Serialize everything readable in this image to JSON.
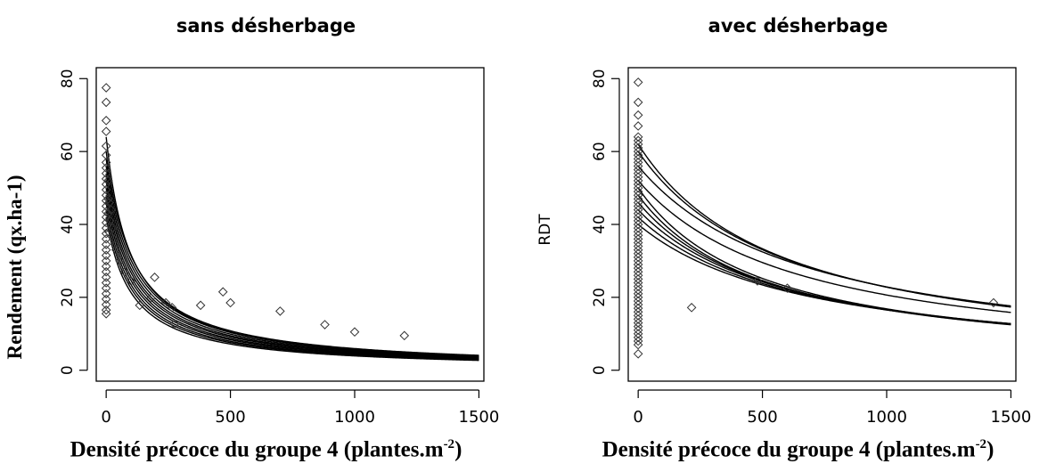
{
  "chart_data": [
    {
      "type": "scatter",
      "title": "sans désherbage",
      "xlabel_main": "Densité précoce du groupe 4 (plantes.m",
      "xlabel_sup": "-2",
      "xlabel_end": ")",
      "ylabel": "Rendement (qx.ha-1)",
      "xlim": [
        -40,
        1520
      ],
      "ylim": [
        -3,
        83
      ],
      "xticks": [
        "0",
        "500",
        "1000",
        "1500"
      ],
      "yticks": [
        "0",
        "20",
        "40",
        "60",
        "80"
      ],
      "grid": false,
      "points": [
        [
          0,
          77.5
        ],
        [
          0,
          73.5
        ],
        [
          0,
          68.5
        ],
        [
          0,
          65.5
        ],
        [
          0,
          61.5
        ],
        [
          0,
          59
        ],
        [
          0,
          57
        ],
        [
          0,
          55.5
        ],
        [
          0,
          54
        ],
        [
          0,
          52.5
        ],
        [
          0,
          51
        ],
        [
          0,
          49.5
        ],
        [
          0,
          48
        ],
        [
          0,
          46.5
        ],
        [
          0,
          45
        ],
        [
          0,
          43.5
        ],
        [
          0,
          42
        ],
        [
          0,
          40.5
        ],
        [
          0,
          39
        ],
        [
          0,
          37.5
        ],
        [
          0,
          36
        ],
        [
          0,
          34.5
        ],
        [
          0,
          33
        ],
        [
          0,
          31.5
        ],
        [
          0,
          30
        ],
        [
          0,
          28.5
        ],
        [
          0,
          27
        ],
        [
          0,
          25.5
        ],
        [
          0,
          24
        ],
        [
          0,
          22.5
        ],
        [
          0,
          21
        ],
        [
          0,
          19.5
        ],
        [
          0,
          18
        ],
        [
          0,
          16.5
        ],
        [
          0,
          15.5
        ],
        [
          8,
          52
        ],
        [
          8,
          47
        ],
        [
          8,
          43
        ],
        [
          10,
          38
        ],
        [
          12,
          46
        ],
        [
          15,
          41
        ],
        [
          20,
          44
        ],
        [
          25,
          39
        ],
        [
          30,
          36
        ],
        [
          40,
          33
        ],
        [
          55,
          30
        ],
        [
          75,
          27
        ],
        [
          100,
          24.5
        ],
        [
          135,
          17.8
        ],
        [
          180,
          19.8
        ],
        [
          195,
          25.5
        ],
        [
          240,
          18.5
        ],
        [
          265,
          17.2
        ],
        [
          275,
          12.7
        ],
        [
          380,
          17.8
        ],
        [
          470,
          21.5
        ],
        [
          500,
          18.5
        ],
        [
          700,
          16.2
        ],
        [
          880,
          12.5
        ],
        [
          1000,
          10.5
        ],
        [
          1200,
          9.5
        ]
      ],
      "curves": [
        {
          "y0": 64,
          "k": 0.0102
        },
        {
          "y0": 60,
          "k": 0.0091
        },
        {
          "y0": 58,
          "k": 0.0092
        },
        {
          "y0": 56,
          "k": 0.0093
        },
        {
          "y0": 54,
          "k": 0.0094
        },
        {
          "y0": 52,
          "k": 0.0094
        },
        {
          "y0": 50,
          "k": 0.0095
        },
        {
          "y0": 48,
          "k": 0.0095
        },
        {
          "y0": 46,
          "k": 0.0096
        },
        {
          "y0": 44,
          "k": 0.0096
        },
        {
          "y0": 42,
          "k": 0.0097
        }
      ]
    },
    {
      "type": "scatter",
      "title": "avec désherbage",
      "xlabel_main": "Densité précoce du groupe 4 (plantes.m",
      "xlabel_sup": "-2",
      "xlabel_end": ")",
      "ylabel": "RDT",
      "xlim": [
        -40,
        1520
      ],
      "ylim": [
        -3,
        83
      ],
      "xticks": [
        "0",
        "500",
        "1000",
        "1500"
      ],
      "yticks": [
        "0",
        "20",
        "40",
        "60",
        "80"
      ],
      "grid": false,
      "points": [
        [
          0,
          79
        ],
        [
          0,
          73.5
        ],
        [
          0,
          70
        ],
        [
          0,
          67
        ],
        [
          0,
          64
        ],
        [
          0,
          63
        ],
        [
          0,
          62
        ],
        [
          0,
          61
        ],
        [
          0,
          60
        ],
        [
          0,
          59
        ],
        [
          0,
          58
        ],
        [
          0,
          57
        ],
        [
          0,
          56
        ],
        [
          0,
          55
        ],
        [
          0,
          54
        ],
        [
          0,
          53
        ],
        [
          0,
          52
        ],
        [
          0,
          51
        ],
        [
          0,
          50
        ],
        [
          0,
          49
        ],
        [
          0,
          48
        ],
        [
          0,
          47
        ],
        [
          0,
          46
        ],
        [
          0,
          45
        ],
        [
          0,
          44
        ],
        [
          0,
          43
        ],
        [
          0,
          42
        ],
        [
          0,
          41
        ],
        [
          0,
          40
        ],
        [
          0,
          39
        ],
        [
          0,
          38
        ],
        [
          0,
          37
        ],
        [
          0,
          36
        ],
        [
          0,
          35
        ],
        [
          0,
          34
        ],
        [
          0,
          33
        ],
        [
          0,
          32
        ],
        [
          0,
          31
        ],
        [
          0,
          30
        ],
        [
          0,
          29
        ],
        [
          0,
          28
        ],
        [
          0,
          27
        ],
        [
          0,
          26
        ],
        [
          0,
          25
        ],
        [
          0,
          24
        ],
        [
          0,
          23
        ],
        [
          0,
          22
        ],
        [
          0,
          21
        ],
        [
          0,
          20
        ],
        [
          0,
          19
        ],
        [
          0,
          18
        ],
        [
          0,
          17
        ],
        [
          0,
          16
        ],
        [
          0,
          15
        ],
        [
          0,
          14
        ],
        [
          0,
          13
        ],
        [
          0,
          12
        ],
        [
          0,
          11
        ],
        [
          0,
          10
        ],
        [
          0,
          9
        ],
        [
          0,
          8
        ],
        [
          0,
          7
        ],
        [
          0,
          4.5
        ],
        [
          215,
          17.2
        ],
        [
          480,
          24.5
        ],
        [
          600,
          22.5
        ],
        [
          1430,
          18.5
        ]
      ],
      "curves": [
        {
          "y0": 62,
          "k": 0.00172
        },
        {
          "y0": 60,
          "k": 0.00163
        },
        {
          "y0": 56,
          "k": 0.00145
        },
        {
          "y0": 52,
          "k": 0.00152
        },
        {
          "y0": 50,
          "k": 0.00197
        },
        {
          "y0": 48,
          "k": 0.0019
        },
        {
          "y0": 46,
          "k": 0.00176
        },
        {
          "y0": 44,
          "k": 0.00163
        },
        {
          "y0": 42,
          "k": 0.00153
        },
        {
          "y0": 40,
          "k": 0.00142
        }
      ]
    }
  ]
}
